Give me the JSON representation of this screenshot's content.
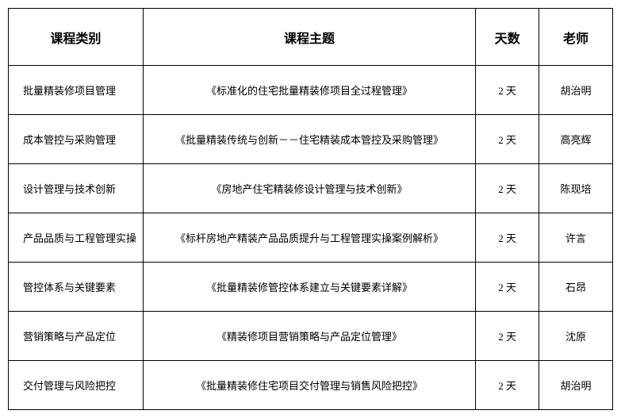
{
  "table": {
    "headers": {
      "category": "课程类别",
      "topic": "课程主题",
      "days": "天数",
      "teacher": "老师"
    },
    "rows": [
      {
        "category": "批量精装修项目管理",
        "topic": "《标准化的住宅批量精装修项目全过程管理》",
        "days": "2 天",
        "teacher": "胡治明"
      },
      {
        "category": "成本管控与采购管理",
        "topic": "《批量精装传统与创新－－住宅精装成本管控及采购管理》",
        "days": "2 天",
        "teacher": "高亮辉"
      },
      {
        "category": "设计管理与技术创新",
        "topic": "《房地产住宅精装修设计管理与技术创新》",
        "days": "2 天",
        "teacher": "陈现培"
      },
      {
        "category": "产品品质与工程管理实操",
        "topic": "《标杆房地产精装产品品质提升与工程管理实操案例解析》",
        "days": "2 天",
        "teacher": "许言"
      },
      {
        "category": "管控体系与关键要素",
        "topic": "《批量精装修管控体系建立与关键要素详解》",
        "days": "2 天",
        "teacher": "石昂"
      },
      {
        "category": "营销策略与产品定位",
        "topic": "《精装修项目营销策略与产品定位管理》",
        "days": "2 天",
        "teacher": "沈原"
      },
      {
        "category": "交付管理与风险把控",
        "topic": "《批量精装修住宅项目交付管理与销售风险把控》",
        "days": "2 天",
        "teacher": "胡治明"
      }
    ],
    "styling": {
      "border_color": "#000000",
      "background_color": "#ffffff",
      "header_font_size": 16,
      "header_font_weight": "bold",
      "cell_font_size": 13,
      "header_row_height": 72,
      "data_row_height": 62,
      "column_widths": {
        "category": 170,
        "topic": 420,
        "days": 80,
        "teacher": 93
      }
    }
  }
}
